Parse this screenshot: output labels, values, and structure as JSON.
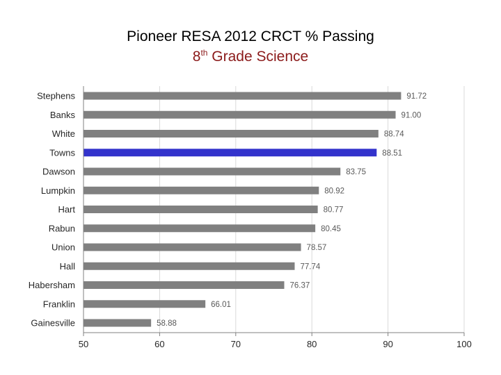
{
  "page": {
    "title_line1": "Pioneer RESA 2012 CRCT % Passing",
    "title_line2_prefix": "8",
    "title_line2_sup": "th",
    "title_line2_suffix": " Grade Science"
  },
  "chart_data": {
    "type": "bar",
    "orientation": "horizontal",
    "title": "Pioneer RESA 2012 CRCT % Passing",
    "subtitle": "8th Grade Science",
    "categories": [
      "Stephens",
      "Banks",
      "White",
      "Towns",
      "Dawson",
      "Lumpkin",
      "Hart",
      "Rabun",
      "Union",
      "Hall",
      "Habersham",
      "Franklin",
      "Gainesville"
    ],
    "values": [
      91.72,
      91.0,
      88.74,
      88.51,
      83.75,
      80.92,
      80.77,
      80.45,
      78.57,
      77.74,
      76.37,
      66.01,
      58.88
    ],
    "value_labels": [
      "91.72",
      "91.00",
      "88.74",
      "88.51",
      "83.75",
      "80.92",
      "80.77",
      "80.45",
      "78.57",
      "77.74",
      "76.37",
      "66.01",
      "58.88"
    ],
    "highlight": "Towns",
    "xlim": [
      50,
      100
    ],
    "x_ticks": [
      50,
      60,
      70,
      80,
      90,
      100
    ],
    "xlabel": "",
    "ylabel": "",
    "grid": true,
    "colors": {
      "bar": "#808080",
      "highlight": "#3333cc",
      "grid": "#d9d9d9",
      "axis": "#808080",
      "label": "#262626",
      "value_label": "#595959"
    }
  }
}
